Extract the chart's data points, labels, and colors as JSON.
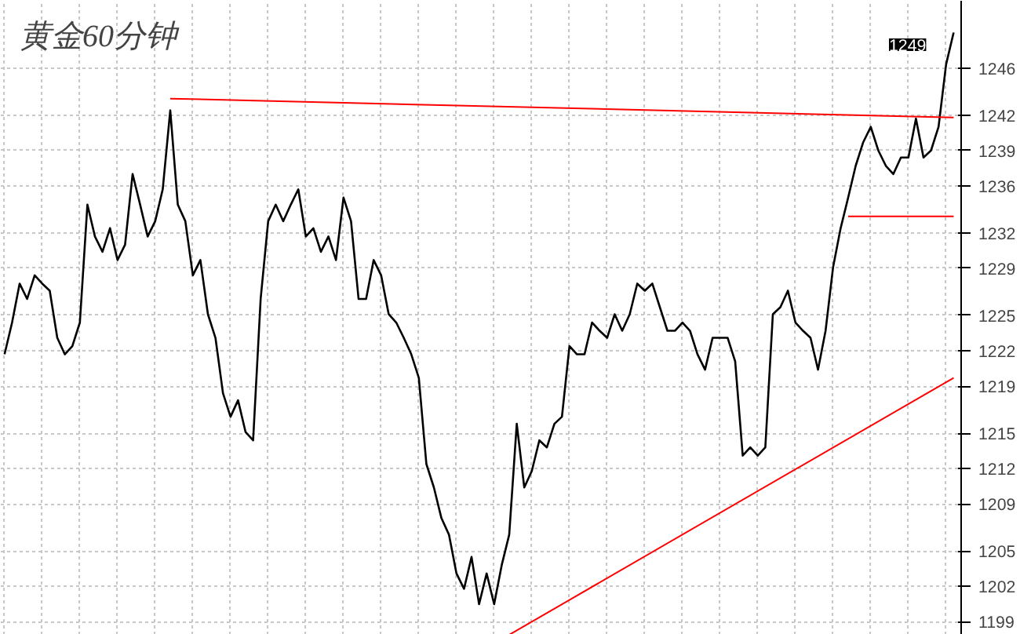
{
  "chart_data": {
    "type": "line",
    "title": "黄金60分钟",
    "categories": [
      null,
      null,
      null,
      null,
      null,
      null,
      null,
      null,
      null,
      null,
      null,
      null,
      null,
      null,
      null,
      null,
      null,
      null,
      null,
      null,
      null,
      null,
      null,
      null,
      null,
      null,
      null,
      null,
      null,
      null,
      null,
      null,
      null,
      null,
      null,
      null,
      null,
      null,
      null,
      null,
      null,
      null,
      null,
      null,
      null,
      null,
      null,
      null,
      null,
      null,
      null,
      null,
      null,
      null,
      null,
      null,
      null,
      null,
      null,
      null,
      null,
      null,
      null,
      null,
      null,
      null,
      null,
      null,
      null,
      null,
      null,
      null,
      null,
      null,
      null,
      null,
      null,
      null,
      null,
      null,
      null,
      null,
      null,
      null,
      null,
      null,
      null,
      null,
      null,
      null,
      null,
      null,
      null,
      null,
      null,
      null,
      null,
      null,
      null,
      null,
      null,
      null,
      null,
      null,
      null,
      null,
      null,
      null,
      null,
      null,
      null,
      null,
      null,
      null,
      null,
      null,
      null,
      null,
      null,
      null,
      null,
      null,
      null,
      null,
      null,
      null,
      null
    ],
    "series": [
      {
        "color": "#000000",
        "values": [
          1221.7,
          1224.4,
          1227.7,
          1226.4,
          1228.4,
          1227.7,
          1227.1,
          1223.1,
          1221.7,
          1222.4,
          1224.4,
          1234.4,
          1231.7,
          1230.4,
          1232.4,
          1229.7,
          1231.0,
          1237.0,
          1234.4,
          1231.7,
          1233.0,
          1235.7,
          1242.4,
          1234.4,
          1233.0,
          1228.4,
          1229.7,
          1225.1,
          1223.1,
          1218.4,
          1216.4,
          1217.8,
          1215.1,
          1214.4,
          1226.4,
          1233.0,
          1234.4,
          1233.0,
          1234.4,
          1235.7,
          1231.7,
          1232.4,
          1230.4,
          1231.7,
          1229.7,
          1235.0,
          1233.0,
          1226.4,
          1226.4,
          1229.7,
          1228.4,
          1225.1,
          1224.4,
          1223.1,
          1221.7,
          1219.7,
          1212.4,
          1210.4,
          1207.8,
          1206.4,
          1203.1,
          1201.8,
          1204.5,
          1200.5,
          1203.1,
          1200.5,
          1203.8,
          1206.4,
          1215.8,
          1210.4,
          1211.8,
          1214.4,
          1213.8,
          1215.8,
          1216.4,
          1222.4,
          1221.7,
          1221.7,
          1224.4,
          1223.7,
          1223.1,
          1225.1,
          1223.7,
          1225.1,
          1227.7,
          1227.1,
          1227.7,
          1225.7,
          1223.7,
          1223.7,
          1224.4,
          1223.7,
          1221.7,
          1220.4,
          1223.1,
          1223.1,
          1223.1,
          1221.1,
          1213.1,
          1213.8,
          1213.1,
          1213.8,
          1225.1,
          1225.7,
          1227.1,
          1224.4,
          1223.7,
          1223.1,
          1220.4,
          1223.7,
          1229.1,
          1232.4,
          1235.0,
          1237.7,
          1239.7,
          1241.0,
          1239.0,
          1237.7,
          1237.0,
          1238.4,
          1238.4,
          1241.7,
          1238.4,
          1239.0,
          1241.0,
          1246.3,
          1249.0
        ]
      },
      {
        "color": "#ff0000",
        "values": [
          null,
          null,
          null,
          null,
          null,
          null,
          null,
          null,
          null,
          null,
          null,
          null,
          null,
          null,
          null,
          null,
          null,
          null,
          null,
          null,
          null,
          null,
          1243.4,
          null,
          null,
          null,
          null,
          null,
          null,
          null,
          null,
          null,
          null,
          null,
          null,
          null,
          null,
          null,
          null,
          null,
          null,
          null,
          null,
          null,
          null,
          null,
          null,
          null,
          null,
          null,
          null,
          null,
          null,
          null,
          null,
          null,
          null,
          null,
          null,
          null,
          null,
          null,
          null,
          null,
          null,
          null,
          null,
          null,
          null,
          null,
          null,
          null,
          null,
          null,
          null,
          null,
          null,
          null,
          null,
          null,
          null,
          null,
          null,
          null,
          null,
          null,
          null,
          null,
          null,
          null,
          null,
          null,
          null,
          null,
          null,
          null,
          null,
          null,
          null,
          null,
          null,
          null,
          null,
          null,
          null,
          null,
          null,
          null,
          null,
          null,
          null,
          null,
          null,
          null,
          null,
          null,
          null,
          null,
          null,
          null,
          null,
          null,
          null,
          null,
          null,
          null,
          1241.8
        ]
      },
      {
        "color": "#ff0000",
        "values": [
          null,
          null,
          null,
          null,
          null,
          null,
          null,
          null,
          null,
          null,
          null,
          null,
          null,
          null,
          null,
          null,
          null,
          null,
          null,
          null,
          null,
          null,
          null,
          null,
          null,
          null,
          null,
          null,
          null,
          null,
          null,
          null,
          null,
          null,
          null,
          null,
          null,
          null,
          null,
          null,
          null,
          null,
          null,
          null,
          null,
          null,
          null,
          null,
          null,
          null,
          null,
          null,
          null,
          null,
          null,
          null,
          null,
          null,
          null,
          null,
          null,
          null,
          null,
          null,
          null,
          null,
          null,
          null,
          null,
          null,
          null,
          null,
          null,
          null,
          null,
          null,
          null,
          null,
          null,
          null,
          null,
          null,
          null,
          null,
          null,
          null,
          null,
          null,
          null,
          null,
          null,
          null,
          null,
          null,
          null,
          null,
          null,
          null,
          null,
          null,
          null,
          null,
          null,
          null,
          null,
          null,
          null,
          null,
          null,
          null,
          null,
          null,
          1233.4,
          null,
          null,
          null,
          null,
          null,
          null,
          null,
          null,
          null,
          null,
          null,
          null,
          null,
          1233.4
        ]
      },
      {
        "color": "#ff0000",
        "values": [
          null,
          null,
          null,
          null,
          null,
          null,
          null,
          null,
          null,
          null,
          null,
          null,
          null,
          null,
          null,
          null,
          null,
          null,
          null,
          null,
          null,
          null,
          null,
          null,
          null,
          null,
          null,
          null,
          null,
          null,
          null,
          null,
          null,
          null,
          null,
          null,
          null,
          null,
          null,
          null,
          null,
          null,
          null,
          null,
          null,
          null,
          null,
          null,
          null,
          null,
          null,
          null,
          null,
          null,
          null,
          null,
          null,
          null,
          null,
          null,
          null,
          null,
          null,
          null,
          null,
          null,
          null,
          1197.9,
          null,
          null,
          null,
          null,
          null,
          null,
          null,
          null,
          null,
          null,
          null,
          null,
          null,
          null,
          null,
          null,
          null,
          null,
          null,
          null,
          null,
          null,
          null,
          null,
          null,
          null,
          null,
          null,
          null,
          null,
          null,
          null,
          null,
          null,
          null,
          null,
          null,
          null,
          null,
          null,
          null,
          null,
          null,
          null,
          null,
          null,
          null,
          null,
          null,
          null,
          null,
          null,
          null,
          null,
          null,
          null,
          null,
          null,
          1219.7
        ]
      }
    ],
    "ylim": [
      1197.9,
      1251.7
    ],
    "yticks": [
      1199,
      1202,
      1205,
      1209,
      1212,
      1215,
      1219,
      1222,
      1225,
      1229,
      1232,
      1236,
      1239,
      1242,
      1246
    ],
    "annotations": [
      "1249"
    ],
    "grid": true,
    "legend": false
  }
}
